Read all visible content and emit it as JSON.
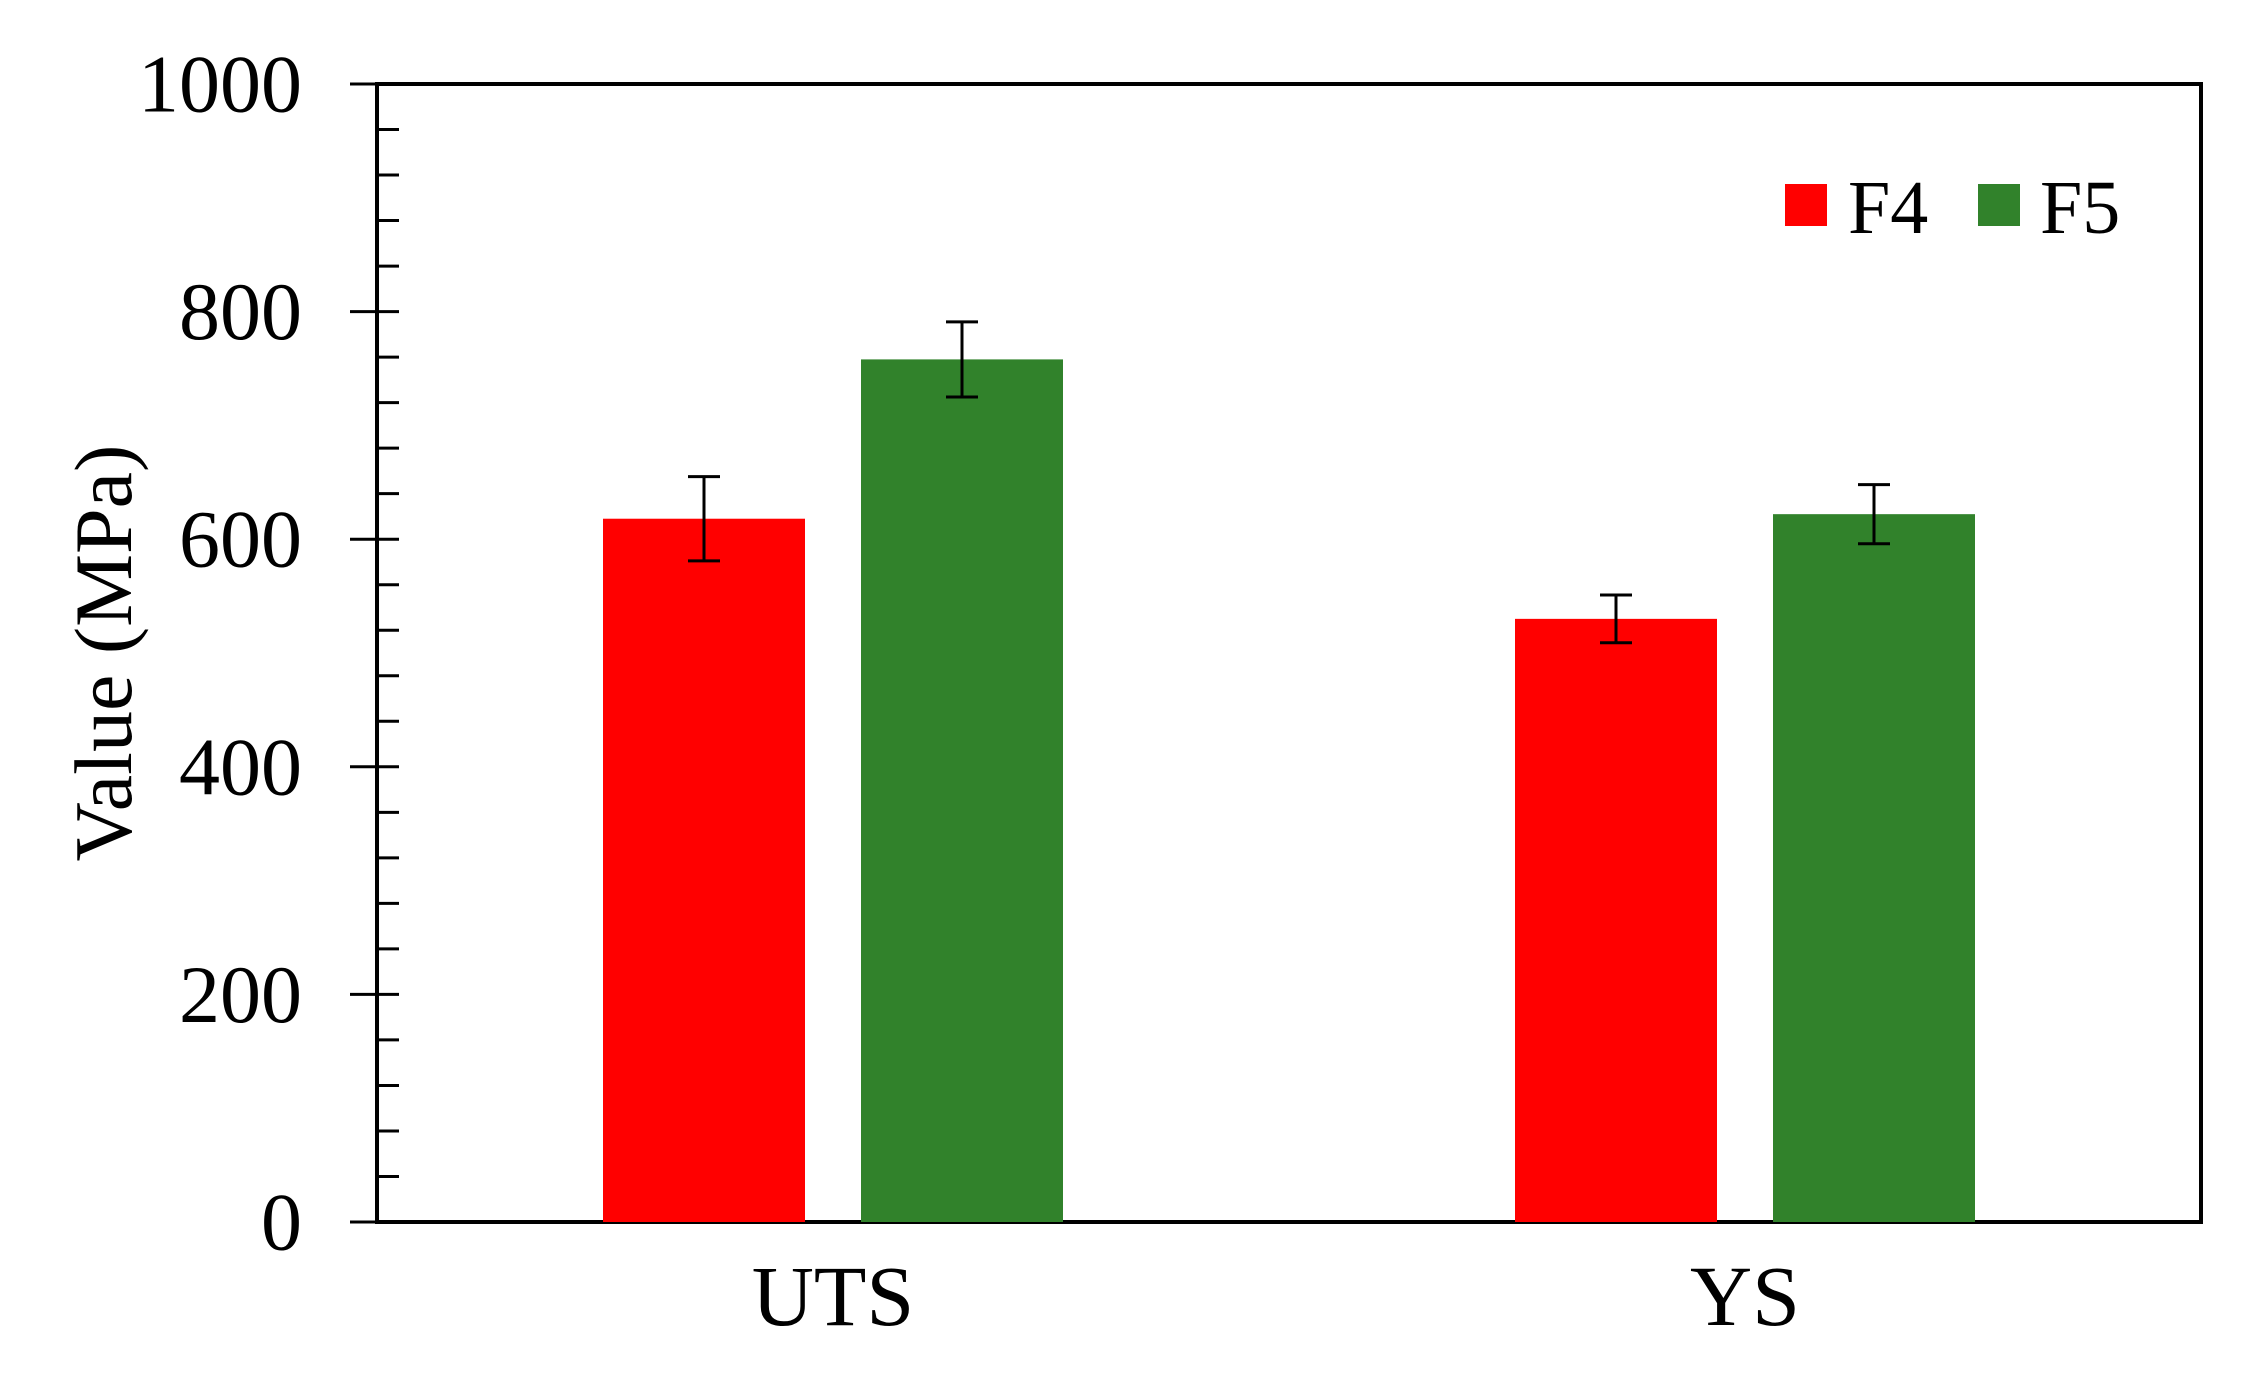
{
  "chart_data": {
    "type": "bar",
    "categories": [
      "UTS",
      "YS"
    ],
    "series": [
      {
        "name": "F4",
        "color": "#ff0000",
        "values": [
          618,
          530
        ],
        "errors": [
          37,
          21
        ]
      },
      {
        "name": "F5",
        "color": "#31822b",
        "values": [
          758,
          622
        ],
        "errors": [
          33,
          26
        ]
      }
    ],
    "ylabel": "Value (MPa)",
    "xlabel": "",
    "ylim": [
      0,
      1000
    ],
    "yticks": [
      0,
      200,
      400,
      600,
      800,
      1000
    ],
    "minor_tick_step": 40,
    "grid": false,
    "legend_position": "top-right"
  }
}
